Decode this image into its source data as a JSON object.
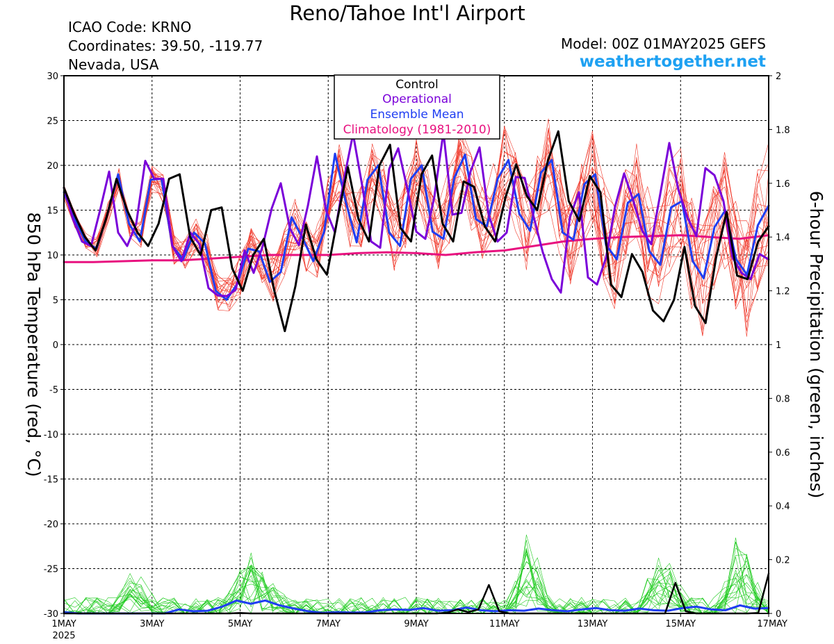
{
  "header": {
    "title": "Reno/Tahoe Int'l Airport",
    "icao": "ICAO Code: KRNO",
    "coordinates": "Coordinates: 39.50, -119.77",
    "region": "Nevada, USA",
    "model": "Model: 00Z 01MAY2025 GEFS",
    "site": "weathertogether.net"
  },
  "colors": {
    "control": "#000000",
    "operational": "#7a00d9",
    "ensemble_mean": "#1f3ef2",
    "climatology": "#e8117f",
    "members": "#f0392b",
    "precip_members": "#22cc22",
    "site": "#1ea1f2"
  },
  "chart_data": {
    "type": "line",
    "title": "Reno/Tahoe Int'l Airport",
    "ylabel": "850 hPa Temperature (red, °C)",
    "y2label": "6-hour Precipitation (green, inches)",
    "ylim": [
      -30,
      30
    ],
    "y2lim": [
      0,
      2
    ],
    "yticks": [
      30,
      25,
      20,
      15,
      10,
      5,
      0,
      -5,
      -10,
      -15,
      -20,
      -25,
      -30
    ],
    "y2ticks": [
      2,
      1.8,
      1.6,
      1.4,
      1.2,
      1,
      0.8,
      0.6,
      0.4,
      0.2,
      0
    ],
    "xlim": [
      0,
      16
    ],
    "xticks": [
      {
        "day": 0,
        "label": "1MAY",
        "sub": "2025"
      },
      {
        "day": 2,
        "label": "3MAY"
      },
      {
        "day": 4,
        "label": "5MAY"
      },
      {
        "day": 6,
        "label": "7MAY"
      },
      {
        "day": 8,
        "label": "9MAY"
      },
      {
        "day": 10,
        "label": "11MAY"
      },
      {
        "day": 12,
        "label": "13MAY"
      },
      {
        "day": 14,
        "label": "15MAY"
      },
      {
        "day": 16,
        "label": "17MAY"
      }
    ],
    "grid": true,
    "legend": {
      "position": "top-center",
      "entries": [
        "Control",
        "Operational",
        "Ensemble Mean",
        "Climatology (1981-2010)"
      ]
    },
    "x_step_days": 0.25,
    "temperature_series": [
      {
        "name": "Control",
        "values": [
          17.5,
          14.5,
          12,
          10.5,
          14,
          18.5,
          15,
          12.5,
          11,
          13.5,
          18.5,
          19,
          12,
          10,
          15,
          15.3,
          8.5,
          6,
          10,
          11.8,
          6,
          1.5,
          6.5,
          13.4,
          9.5,
          7.8,
          14,
          19.8,
          14,
          11.5,
          20,
          22.3,
          13,
          11.5,
          19,
          21.1,
          13.5,
          11.5,
          18.2,
          17.6,
          13.2,
          11.5,
          16.5,
          20.1,
          16.6,
          15,
          20.5,
          23.8,
          16,
          13.8,
          18.8,
          17,
          6.7,
          5.3,
          10.1,
          8.1,
          3.8,
          2.6,
          5,
          10.9,
          4.3,
          2.4,
          9.7,
          14.8,
          7.7,
          7.3,
          11.5,
          13.2
        ]
      },
      {
        "name": "Operational",
        "values": [
          17.5,
          14,
          11.5,
          11,
          15,
          19.3,
          12.5,
          11,
          13.5,
          20.5,
          18.5,
          18.5,
          11,
          9.3,
          12.5,
          11.2,
          6.3,
          5.5,
          5.4,
          6.1,
          10.5,
          8,
          11,
          15.2,
          18,
          13,
          11.1,
          15.5,
          21,
          15,
          12.5,
          18.5,
          23.5,
          17.8,
          11.5,
          10.8,
          19.6,
          21.9,
          17.4,
          12.6,
          11.8,
          16.5,
          23.7,
          14.5,
          14.7,
          19.3,
          22,
          14.5,
          11.5,
          12.5,
          18.7,
          18.6,
          14.2,
          10.3,
          7.3,
          5.8,
          14.2,
          17,
          7.5,
          6.7,
          9.7,
          15.4,
          19.1,
          16.1,
          12.7,
          11.2,
          16.8,
          22.5,
          17.3,
          14.2,
          12.1,
          19.7,
          18.9,
          16,
          9.7,
          8,
          7.3,
          10.1,
          9.5
        ]
      },
      {
        "name": "Ensemble Mean",
        "values": [
          17,
          14,
          11.5,
          10.7,
          14.5,
          19,
          13.5,
          11.5,
          18.4,
          18.5,
          11,
          9.5,
          12.5,
          11.3,
          6,
          5,
          6.8,
          10.7,
          10.4,
          7,
          8.1,
          14.2,
          11.9,
          9.3,
          12.6,
          21.3,
          15.9,
          11.4,
          18.4,
          20,
          12.5,
          11,
          18.5,
          20,
          12.6,
          11.8,
          18.6,
          21.2,
          14,
          13.2,
          18.5,
          20.6,
          14.6,
          12.7,
          19.2,
          20.6,
          12.5,
          11.7,
          17.9,
          19,
          11.1,
          9.5,
          15.8,
          16.8,
          10.4,
          8.9,
          15.3,
          16,
          9.3,
          7.4,
          13.1,
          15,
          9.5,
          7.8,
          13.3,
          15.5
        ]
      },
      {
        "name": "Climatology (1981-2010)",
        "values": [
          9.2,
          9.2,
          9.3,
          9.4,
          9.4,
          9.6,
          9.8,
          10,
          10,
          10,
          10.2,
          10.3,
          10.2,
          10,
          10.3,
          10.5,
          11,
          11.5,
          11.8,
          12,
          12.1,
          12.2,
          12,
          11.8,
          12.2
        ]
      }
    ],
    "precipitation_series": [
      {
        "name": "Control",
        "values": [
          0,
          0,
          0,
          0,
          0,
          0,
          0,
          0,
          0,
          0,
          0,
          0,
          0,
          0,
          0,
          0,
          0,
          0.002,
          0,
          0,
          0,
          0,
          0,
          0,
          0,
          0,
          0,
          0,
          0,
          0,
          0,
          0,
          0,
          0,
          0,
          0,
          0,
          0.003,
          0.015,
          0.005,
          0.015,
          0.106,
          0.008,
          0,
          0,
          0,
          0,
          0,
          0,
          0,
          0,
          0,
          0,
          0,
          0,
          0,
          0,
          0,
          0,
          0.114,
          0.008,
          0,
          0,
          0,
          0,
          0,
          0,
          0.002,
          0.148
        ]
      },
      {
        "name": "Ensemble Mean",
        "values": [
          0.005,
          0,
          0,
          0,
          0,
          0,
          0,
          0,
          0.015,
          0.008,
          0.01,
          0.025,
          0.048,
          0.036,
          0.048,
          0.03,
          0.018,
          0.008,
          0.002,
          0.005,
          0.003,
          0.004,
          0.012,
          0.015,
          0.013,
          0.02,
          0.01,
          0.012,
          0.022,
          0.012,
          0.008,
          0.012,
          0.01,
          0.018,
          0.012,
          0.008,
          0.015,
          0.02,
          0.012,
          0.01,
          0.018,
          0.012,
          0.01,
          0.02,
          0.025,
          0.015,
          0.012,
          0.03,
          0.018,
          0.02
        ]
      }
    ]
  }
}
